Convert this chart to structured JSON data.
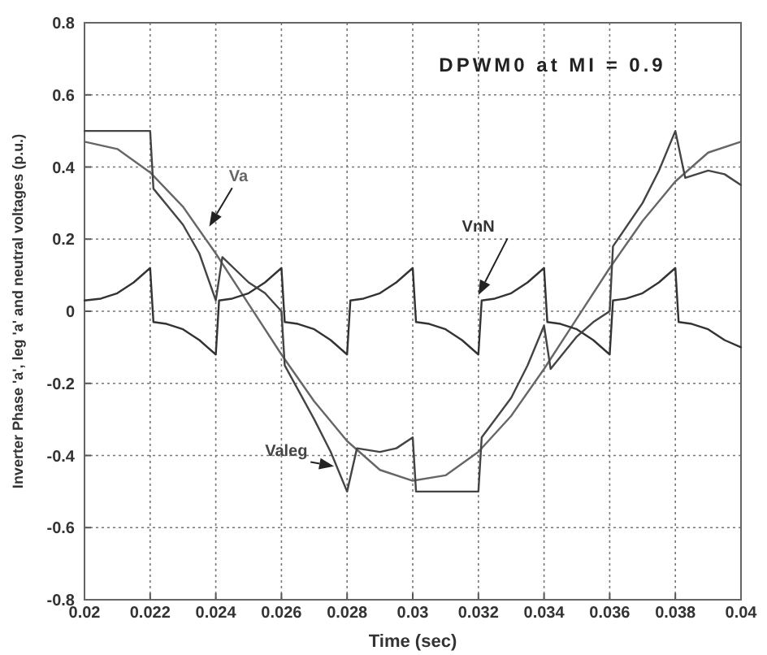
{
  "chart_data": {
    "type": "line",
    "title": "DPWM0 at MI = 0.9",
    "xlabel": "Time (sec)",
    "ylabel": "Inverter Phase 'a', leg 'a' and neutral voltages (p.u.)",
    "xlim": [
      0.02,
      0.04
    ],
    "xticks": [
      0.02,
      0.022,
      0.024,
      0.026,
      0.028,
      0.03,
      0.032,
      0.034,
      0.036,
      0.038,
      0.04
    ],
    "ylim": [
      -0.8,
      0.8
    ],
    "yticks": [
      -0.8,
      -0.6,
      -0.4,
      -0.2,
      0,
      0.2,
      0.4,
      0.6,
      0.8
    ],
    "grid": true,
    "series": [
      {
        "name": "Va",
        "color": "#666666",
        "x": [
          0.02,
          0.021,
          0.022,
          0.023,
          0.024,
          0.025,
          0.026,
          0.027,
          0.028,
          0.029,
          0.03,
          0.031,
          0.032,
          0.033,
          0.034,
          0.035,
          0.036,
          0.037,
          0.038,
          0.039,
          0.04
        ],
        "values": [
          0.47,
          0.45,
          0.385,
          0.29,
          0.16,
          0.02,
          -0.12,
          -0.25,
          -0.36,
          -0.44,
          -0.47,
          -0.455,
          -0.39,
          -0.29,
          -0.16,
          -0.02,
          0.12,
          0.25,
          0.36,
          0.44,
          0.47
        ]
      },
      {
        "name": "VnN",
        "color": "#333333",
        "x": [
          0.02,
          0.0205,
          0.021,
          0.0215,
          0.022,
          0.0221,
          0.0225,
          0.023,
          0.0235,
          0.024,
          0.0241,
          0.0245,
          0.025,
          0.0255,
          0.026,
          0.0261,
          0.0265,
          0.027,
          0.0275,
          0.028,
          0.0281,
          0.0285,
          0.029,
          0.0295,
          0.03,
          0.0301,
          0.0305,
          0.031,
          0.0315,
          0.032,
          0.0321,
          0.0325,
          0.033,
          0.0335,
          0.034,
          0.0341,
          0.0345,
          0.035,
          0.0355,
          0.036,
          0.0361,
          0.0365,
          0.037,
          0.0375,
          0.038,
          0.0381,
          0.0385,
          0.039,
          0.0395,
          0.04
        ],
        "values": [
          0.03,
          0.035,
          0.05,
          0.08,
          0.12,
          -0.03,
          -0.035,
          -0.05,
          -0.08,
          -0.12,
          0.03,
          0.035,
          0.05,
          0.08,
          0.12,
          -0.03,
          -0.035,
          -0.05,
          -0.08,
          -0.12,
          0.03,
          0.035,
          0.05,
          0.08,
          0.12,
          -0.03,
          -0.035,
          -0.05,
          -0.08,
          -0.12,
          0.03,
          0.035,
          0.05,
          0.08,
          0.12,
          -0.03,
          -0.035,
          -0.05,
          -0.08,
          -0.12,
          0.03,
          0.035,
          0.05,
          0.08,
          0.12,
          -0.03,
          -0.035,
          -0.05,
          -0.08,
          -0.1
        ]
      },
      {
        "name": "Valeg",
        "color": "#444444",
        "x": [
          0.02,
          0.022,
          0.0221,
          0.023,
          0.0235,
          0.024,
          0.0242,
          0.025,
          0.0255,
          0.026,
          0.0261,
          0.027,
          0.0275,
          0.028,
          0.0283,
          0.029,
          0.0295,
          0.03,
          0.0301,
          0.032,
          0.0321,
          0.033,
          0.0335,
          0.034,
          0.0342,
          0.035,
          0.0355,
          0.036,
          0.0361,
          0.037,
          0.0375,
          0.038,
          0.0383,
          0.039,
          0.0395,
          0.04
        ],
        "values": [
          0.5,
          0.5,
          0.34,
          0.24,
          0.16,
          0.03,
          0.15,
          0.08,
          0.05,
          0.0,
          -0.15,
          -0.3,
          -0.39,
          -0.5,
          -0.38,
          -0.39,
          -0.38,
          -0.35,
          -0.5,
          -0.5,
          -0.35,
          -0.24,
          -0.15,
          -0.04,
          -0.16,
          -0.07,
          -0.03,
          0.0,
          0.18,
          0.3,
          0.39,
          0.5,
          0.37,
          0.39,
          0.38,
          0.35
        ]
      }
    ]
  }
}
